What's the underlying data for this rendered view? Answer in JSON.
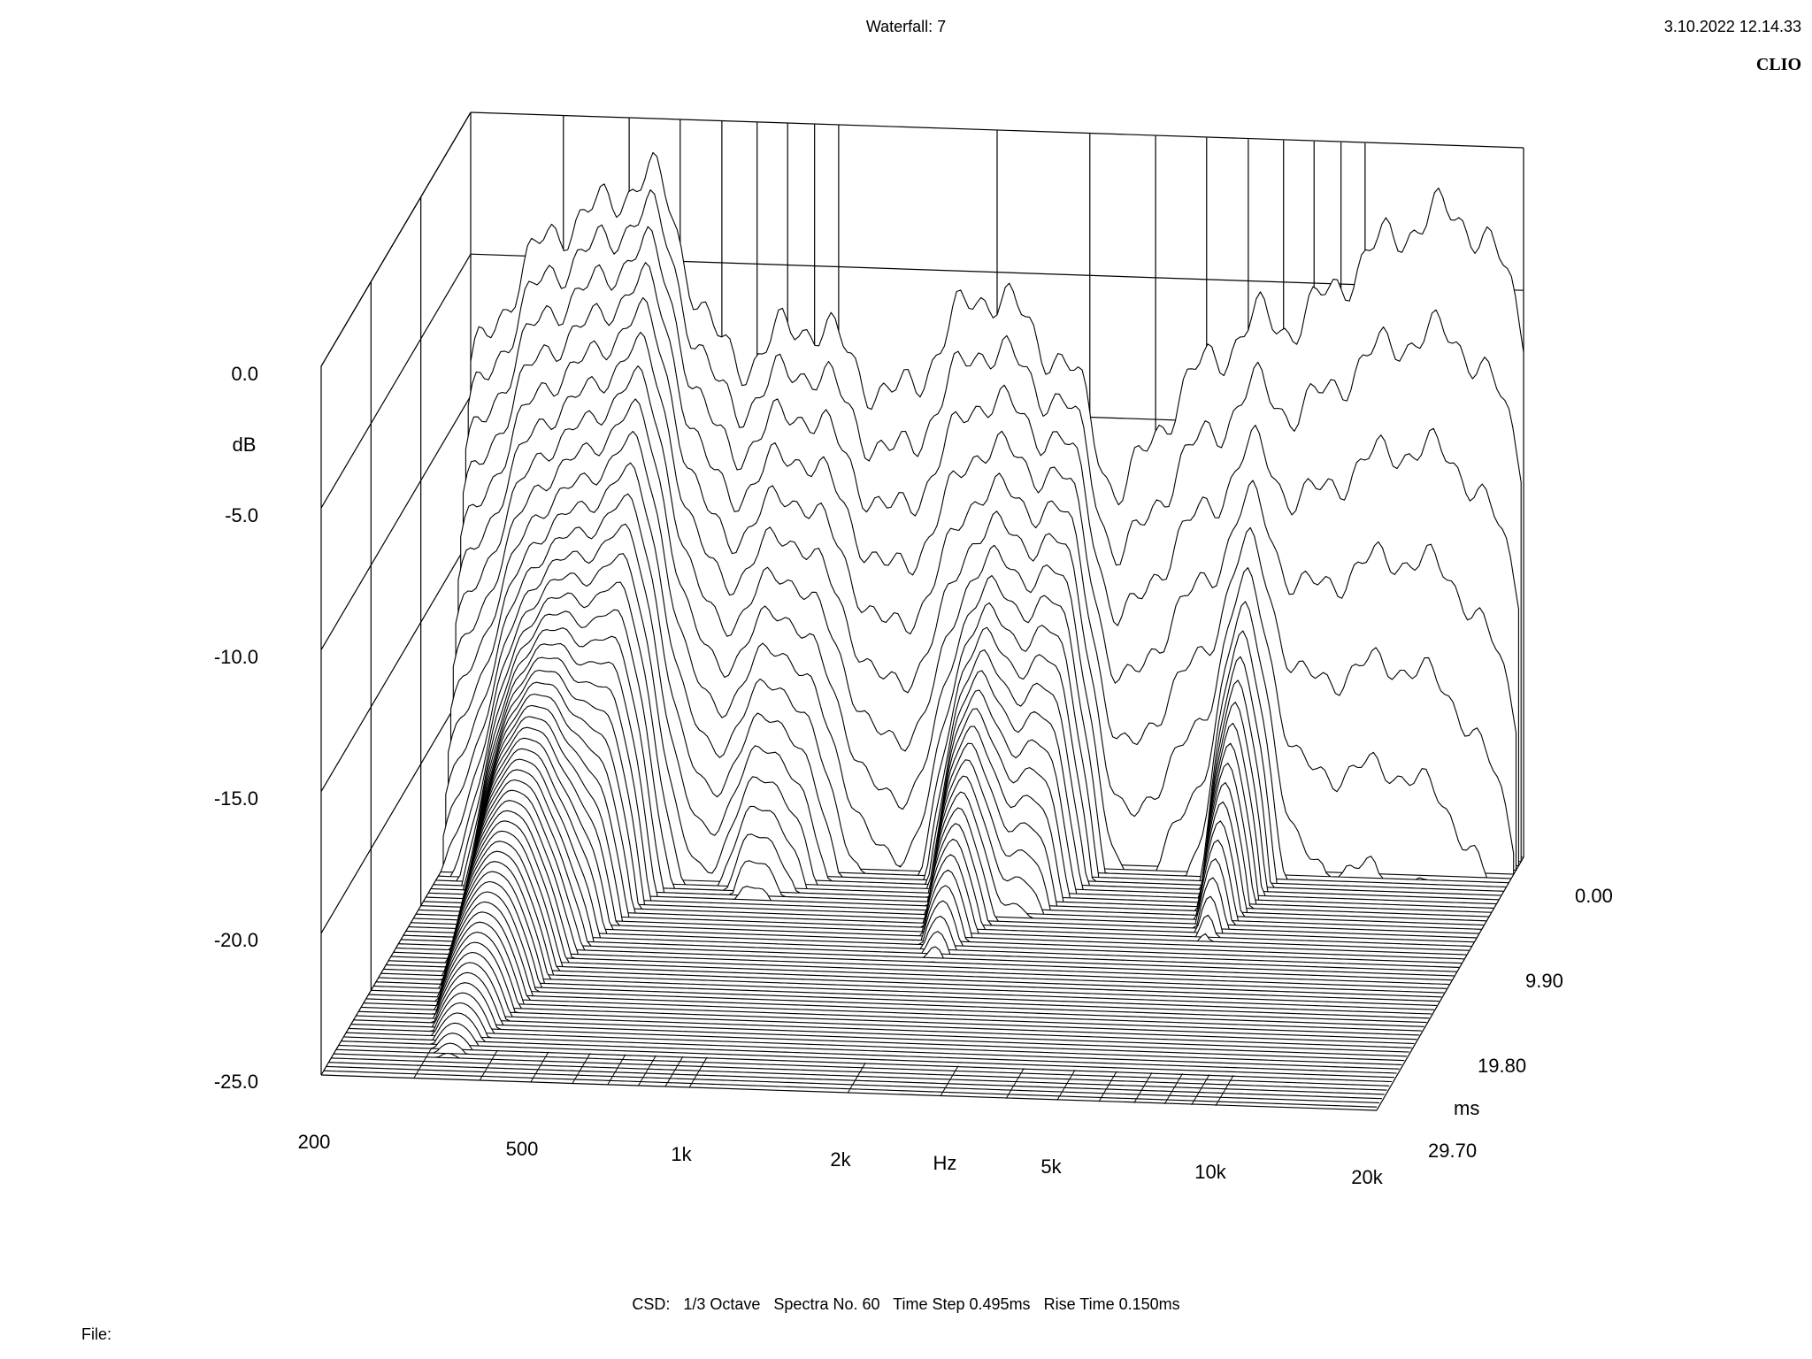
{
  "header": {
    "title": "Waterfall: 7",
    "datetime": "3.10.2022 12.14.33",
    "brand": "CLIO"
  },
  "footer": {
    "params": "CSD:   1/3 Octave   Spectra No. 60   Time Step 0.495ms   Rise Time 0.150ms",
    "file_label": "File:"
  },
  "chart_data": {
    "type": "waterfall",
    "x_axis": {
      "unit_label": "Hz",
      "scale": "log",
      "range": [
        200,
        20000
      ],
      "tick_values": [
        200,
        500,
        1000,
        2000,
        5000,
        10000,
        20000
      ],
      "tick_labels": [
        "200",
        "500",
        "1k",
        "2k",
        "5k",
        "10k",
        "20k"
      ]
    },
    "y_axis": {
      "unit_label": "dB",
      "range": [
        -25,
        0
      ],
      "tick_values": [
        0,
        -5,
        -10,
        -15,
        -20,
        -25
      ],
      "tick_labels": [
        "0.0",
        "-5.0",
        "-10.0",
        "-15.0",
        "-20.0",
        "-25.0"
      ]
    },
    "z_axis": {
      "unit_label": "ms",
      "range": [
        0,
        29.7
      ],
      "tick_values": [
        0,
        9.9,
        19.8,
        29.7
      ],
      "tick_labels": [
        "0.00",
        "9.90",
        "19.80",
        "29.70"
      ]
    },
    "spectra_count": 60,
    "time_step_ms": 0.495,
    "line_color": "#000000",
    "background": "#ffffff",
    "peaks": [
      {
        "freq": 350,
        "level": -3.9,
        "width": 0.22,
        "decay_ms": 3.6
      },
      {
        "freq": 330,
        "level": -13.5,
        "width": 0.1,
        "decay_ms": 24
      },
      {
        "freq": 440,
        "level": -5.5,
        "width": 0.06,
        "decay_ms": 6
      },
      {
        "freq": 900,
        "level": -8.0,
        "width": 0.13,
        "decay_ms": 3.2
      },
      {
        "freq": 830,
        "level": -16.5,
        "width": 0.08,
        "decay_ms": 9
      },
      {
        "freq": 1350,
        "level": -13.5,
        "width": 0.12,
        "decay_ms": 2.2
      },
      {
        "freq": 1900,
        "level": -6.5,
        "width": 0.12,
        "decay_ms": 2.5
      },
      {
        "freq": 2050,
        "level": -14.0,
        "width": 0.06,
        "decay_ms": 13
      },
      {
        "freq": 2700,
        "level": -10.0,
        "width": 0.07,
        "decay_ms": 6
      },
      {
        "freq": 5500,
        "level": -8.0,
        "width": 0.18,
        "decay_ms": 2.0
      },
      {
        "freq": 6300,
        "level": -14.0,
        "width": 0.05,
        "decay_ms": 10
      },
      {
        "freq": 11500,
        "level": -4.0,
        "width": 0.18,
        "decay_ms": 1.4
      },
      {
        "freq": 16000,
        "level": -5.0,
        "width": 0.12,
        "decay_ms": 1.0
      }
    ]
  }
}
